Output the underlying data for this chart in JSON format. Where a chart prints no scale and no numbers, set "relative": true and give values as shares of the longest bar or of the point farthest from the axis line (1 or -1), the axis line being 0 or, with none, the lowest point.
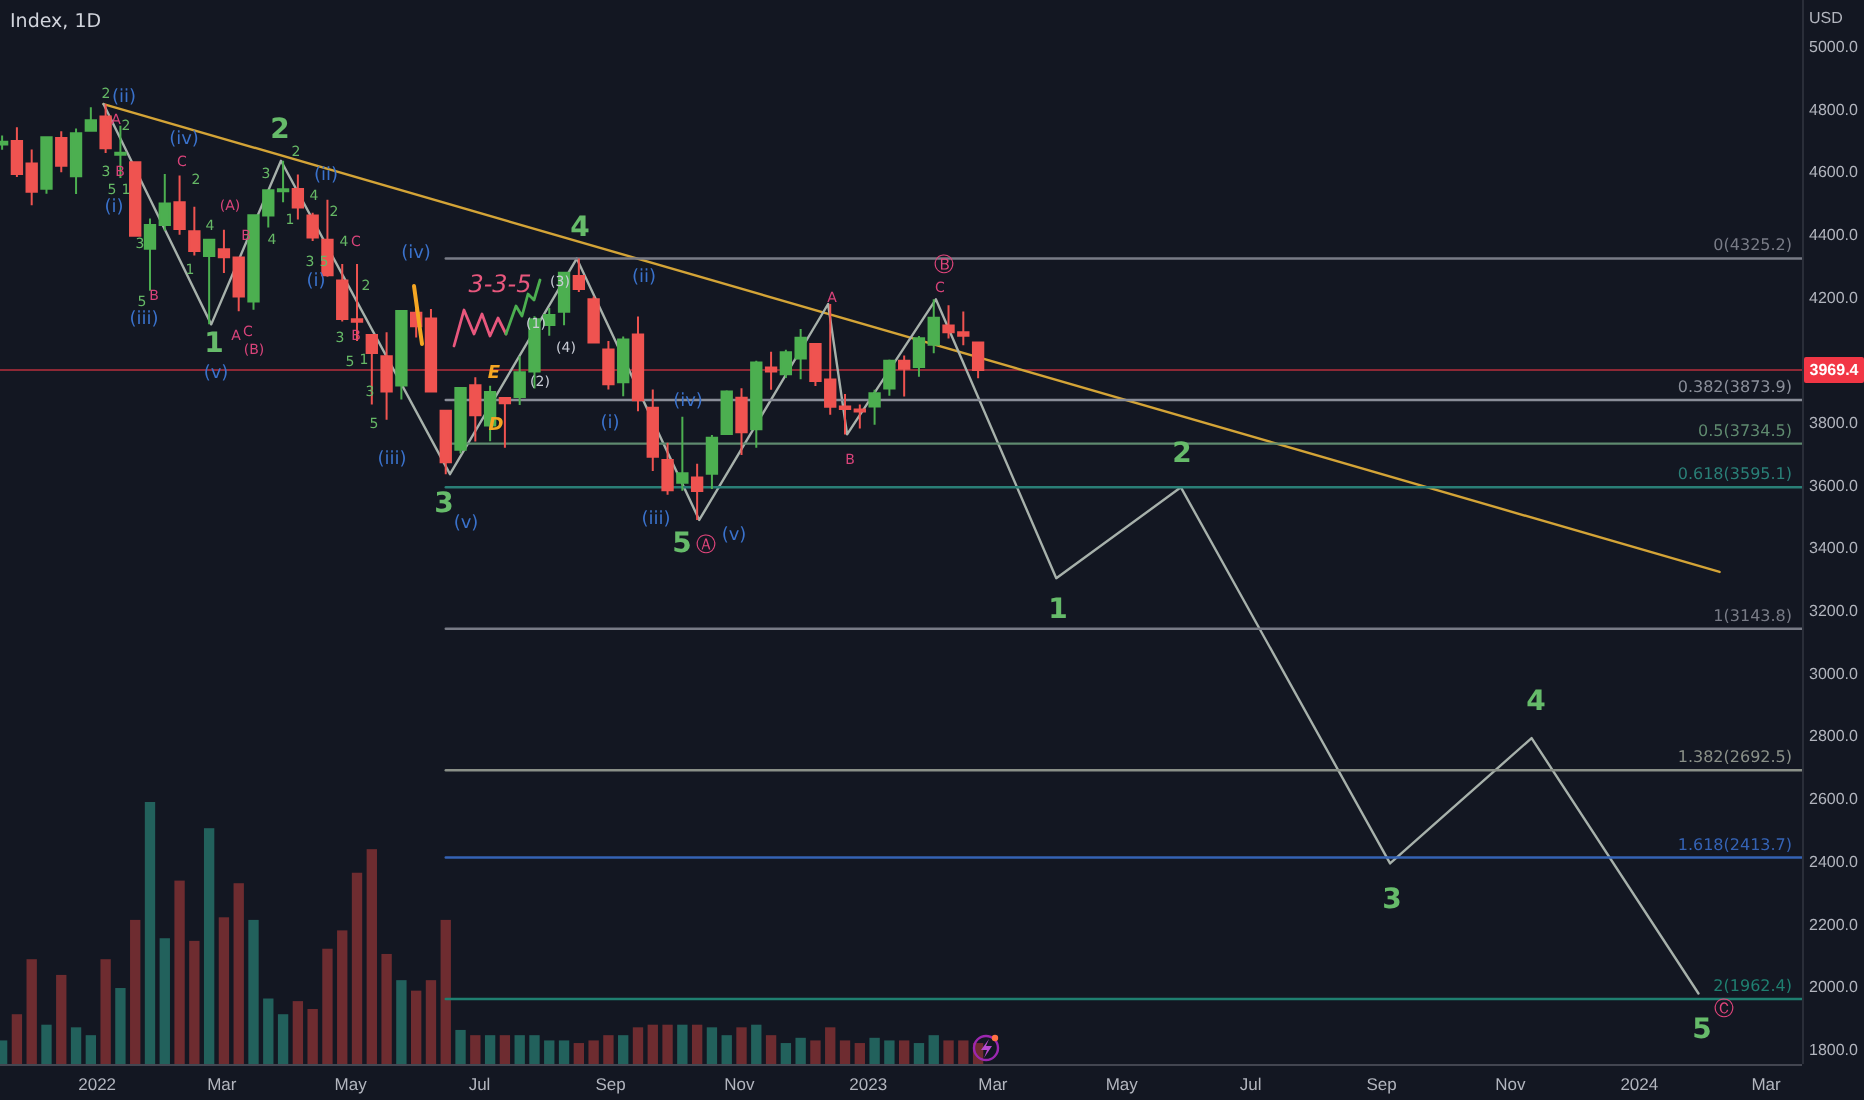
{
  "chart_data": [
    {
      "type": "candlestick",
      "title": "Index, 1D",
      "ylabel": "USD",
      "x": [
        "2021-11-17",
        "2021-11-24",
        "2021-12-01",
        "2021-12-08",
        "2021-12-15",
        "2021-12-22",
        "2021-12-29",
        "2022-01-05",
        "2022-01-12",
        "2022-01-19",
        "2022-01-26",
        "2022-02-02",
        "2022-02-09",
        "2022-02-16",
        "2022-02-23",
        "2022-03-02",
        "2022-03-09",
        "2022-03-16",
        "2022-03-23",
        "2022-03-30",
        "2022-04-06",
        "2022-04-13",
        "2022-04-20",
        "2022-04-27",
        "2022-05-04",
        "2022-05-11",
        "2022-05-18",
        "2022-05-25",
        "2022-06-01",
        "2022-06-08",
        "2022-06-15",
        "2022-06-22",
        "2022-06-29",
        "2022-07-06",
        "2022-07-13",
        "2022-07-20",
        "2022-07-27",
        "2022-08-03",
        "2022-08-10",
        "2022-08-17",
        "2022-08-24",
        "2022-08-31",
        "2022-09-07",
        "2022-09-14",
        "2022-09-21",
        "2022-09-28",
        "2022-10-05",
        "2022-10-12",
        "2022-10-19",
        "2022-10-26",
        "2022-11-02",
        "2022-11-09",
        "2022-11-16",
        "2022-11-23",
        "2022-11-30",
        "2022-12-07",
        "2022-12-14",
        "2022-12-21",
        "2022-12-28",
        "2023-01-04",
        "2023-01-11",
        "2023-01-18",
        "2023-01-25",
        "2023-02-01",
        "2023-02-08",
        "2023-02-15",
        "2023-02-22"
      ],
      "ohlc": [
        [
          4689,
          4718,
          4672,
          4698
        ],
        [
          4700,
          4744,
          4585,
          4595
        ],
        [
          4628,
          4673,
          4495,
          4538
        ],
        [
          4548,
          4713,
          4532,
          4712
        ],
        [
          4710,
          4731,
          4600,
          4621
        ],
        [
          4588,
          4740,
          4531,
          4725
        ],
        [
          4733,
          4808,
          4733,
          4766
        ],
        [
          4778,
          4818,
          4662,
          4677
        ],
        [
          4656,
          4749,
          4582,
          4663
        ],
        [
          4632,
          4632,
          4395,
          4398
        ],
        [
          4356,
          4453,
          4222,
          4432
        ],
        [
          4432,
          4595,
          4414,
          4501
        ],
        [
          4505,
          4590,
          4401,
          4419
        ],
        [
          4412,
          4490,
          4335,
          4349
        ],
        [
          4333,
          4385,
          4115,
          4385
        ],
        [
          4355,
          4417,
          4279,
          4329
        ],
        [
          4328,
          4328,
          4157,
          4204
        ],
        [
          4188,
          4465,
          4162,
          4463
        ],
        [
          4462,
          4546,
          4424,
          4543
        ],
        [
          4541,
          4637,
          4505,
          4546
        ],
        [
          4547,
          4593,
          4450,
          4488
        ],
        [
          4462,
          4471,
          4381,
          4392
        ],
        [
          4385,
          4513,
          4267,
          4272
        ],
        [
          4255,
          4308,
          4124,
          4132
        ],
        [
          4131,
          4308,
          4062,
          4123
        ],
        [
          4081,
          4081,
          3859,
          4024
        ],
        [
          4013,
          4090,
          3811,
          3901
        ],
        [
          3920,
          4160,
          3875,
          4158
        ],
        [
          4152,
          4165,
          4073,
          4109
        ],
        [
          4134,
          4164,
          3900,
          3901
        ],
        [
          3839,
          3839,
          3637,
          3675
        ],
        [
          3715,
          3913,
          3703,
          3912
        ],
        [
          3921,
          3946,
          3741,
          3825
        ],
        [
          3792,
          3919,
          3742,
          3899
        ],
        [
          3880,
          3880,
          3721,
          3863
        ],
        [
          3883,
          4013,
          3858,
          3962
        ],
        [
          3965,
          4141,
          3910,
          4131
        ],
        [
          4113,
          4167,
          4079,
          4145
        ],
        [
          4155,
          4280,
          4112,
          4280
        ],
        [
          4269,
          4325,
          4218,
          4228
        ],
        [
          4195,
          4204,
          4057,
          4057
        ],
        [
          4035,
          4062,
          3907,
          3924
        ],
        [
          3930,
          4076,
          3886,
          4067
        ],
        [
          4083,
          4140,
          3838,
          3873
        ],
        [
          3849,
          3907,
          3647,
          3693
        ],
        [
          3682,
          3737,
          3571,
          3586
        ],
        [
          3610,
          3820,
          3584,
          3640
        ],
        [
          3626,
          3670,
          3491,
          3583
        ],
        [
          3638,
          3762,
          3590,
          3753
        ],
        [
          3765,
          3905,
          3765,
          3901
        ],
        [
          3881,
          3911,
          3698,
          3771
        ],
        [
          3780,
          3999,
          3721,
          3993
        ],
        [
          3977,
          4028,
          3906,
          3965
        ],
        [
          3956,
          4034,
          3944,
          4026
        ],
        [
          4006,
          4100,
          3940,
          4072
        ],
        [
          4052,
          4052,
          3918,
          3934
        ],
        [
          3939,
          4180,
          3827,
          3852
        ],
        [
          3853,
          3893,
          3764,
          3845
        ],
        [
          3843,
          3859,
          3783,
          3840
        ],
        [
          3853,
          3906,
          3795,
          3895
        ],
        [
          3910,
          4003,
          3887,
          3999
        ],
        [
          3999,
          4016,
          3885,
          3973
        ],
        [
          3979,
          4078,
          3948,
          4071
        ],
        [
          4050,
          4195,
          4023,
          4136
        ],
        [
          4111,
          4176,
          4070,
          4090
        ],
        [
          4090,
          4156,
          4048,
          4079
        ],
        [
          4057,
          4057,
          3943,
          3969.4
        ]
      ],
      "colors": [
        "#4caf50",
        "#ef5350",
        "#ef5350",
        "#4caf50",
        "#ef5350",
        "#4caf50",
        "#4caf50",
        "#ef5350",
        "#4caf50",
        "#ef5350",
        "#4caf50",
        "#4caf50",
        "#ef5350",
        "#ef5350",
        "#4caf50",
        "#ef5350",
        "#ef5350",
        "#4caf50",
        "#4caf50",
        "#4caf50",
        "#ef5350",
        "#ef5350",
        "#ef5350",
        "#ef5350",
        "#ef5350",
        "#ef5350",
        "#ef5350",
        "#4caf50",
        "#ef5350",
        "#ef5350",
        "#ef5350",
        "#4caf50",
        "#ef5350",
        "#4caf50",
        "#ef5350",
        "#4caf50",
        "#4caf50",
        "#4caf50",
        "#4caf50",
        "#ef5350",
        "#ef5350",
        "#ef5350",
        "#4caf50",
        "#ef5350",
        "#ef5350",
        "#ef5350",
        "#4caf50",
        "#ef5350",
        "#4caf50",
        "#4caf50",
        "#ef5350",
        "#4caf50",
        "#ef5350",
        "#4caf50",
        "#4caf50",
        "#ef5350",
        "#ef5350",
        "#ef5350",
        "#ef5350",
        "#4caf50",
        "#4caf50",
        "#ef5350",
        "#4caf50",
        "#4caf50",
        "#ef5350",
        "#ef5350",
        "#ef5350"
      ],
      "xlim": [
        "2021-11-16",
        "2024-03-18"
      ],
      "ylim": [
        1755,
        5150
      ],
      "xticks": [
        {
          "value": "2022-01-01",
          "label": "2022"
        },
        {
          "value": "2022-03-01",
          "label": "Mar"
        },
        {
          "value": "2022-05-01",
          "label": "May"
        },
        {
          "value": "2022-07-01",
          "label": "Jul"
        },
        {
          "value": "2022-09-01",
          "label": "Sep"
        },
        {
          "value": "2022-11-01",
          "label": "Nov"
        },
        {
          "value": "2023-01-01",
          "label": "2023"
        },
        {
          "value": "2023-03-01",
          "label": "Mar"
        },
        {
          "value": "2023-05-01",
          "label": "May"
        },
        {
          "value": "2023-07-01",
          "label": "Jul"
        },
        {
          "value": "2023-09-01",
          "label": "Sep"
        },
        {
          "value": "2023-11-01",
          "label": "Nov"
        },
        {
          "value": "2024-01-01",
          "label": "2024"
        },
        {
          "value": "2024-03-01",
          "label": "Mar"
        }
      ],
      "yticks": [
        {
          "value": 1800,
          "label": "1800.0"
        },
        {
          "value": 2000,
          "label": "2000.0"
        },
        {
          "value": 2200,
          "label": "2200.0"
        },
        {
          "value": 2400,
          "label": "2400.0"
        },
        {
          "value": 2600,
          "label": "2600.0"
        },
        {
          "value": 2800,
          "label": "2800.0"
        },
        {
          "value": 3000,
          "label": "3000.0"
        },
        {
          "value": 3200,
          "label": "3200.0"
        },
        {
          "value": 3400,
          "label": "3400.0"
        },
        {
          "value": 3600,
          "label": "3600.0"
        },
        {
          "value": 3800,
          "label": "3800.0"
        },
        {
          "value": 4200,
          "label": "4200.0"
        },
        {
          "value": 4400,
          "label": "4400.0"
        },
        {
          "value": 4600,
          "label": "4600.0"
        },
        {
          "value": 4800,
          "label": "4800.0"
        },
        {
          "value": 5000,
          "label": "5000.0"
        }
      ],
      "series": [
        {
          "type": "line",
          "x": [
            "2022-01-04",
            "2024-02-08"
          ],
          "values": [
            4818,
            3325
          ],
          "color": "#d4a437"
        },
        {
          "type": "line",
          "x": [
            "2022-01-04",
            "2022-02-24",
            "2022-03-29",
            "2022-06-17",
            "2022-08-16",
            "2022-10-13",
            "2022-12-13",
            "2022-12-22",
            "2023-02-02",
            "2023-03-31",
            "2023-05-29",
            "2023-09-05",
            "2023-11-11",
            "2024-01-29"
          ],
          "values": [
            4818,
            4115,
            4637,
            3637,
            4325,
            3491,
            4180,
            3764,
            4195,
            3305,
            3595,
            2395,
            2795,
            1980
          ],
          "color": "#a7b1ab"
        },
        {
          "type": "line",
          "name": "0(4325.2)",
          "x": [
            "2022-06-15",
            "2024-03-18"
          ],
          "values": [
            4325.2,
            4325.2
          ],
          "color": "#787b86"
        },
        {
          "type": "line",
          "name": "0.382(3873.9)",
          "x": [
            "2022-06-15",
            "2024-03-18"
          ],
          "values": [
            3873.9,
            3873.9
          ],
          "color": "#8a8e99"
        },
        {
          "type": "line",
          "name": "0.5(3734.5)",
          "x": [
            "2022-06-15",
            "2024-03-18"
          ],
          "values": [
            3734.5,
            3734.5
          ],
          "color": "#5f8a6f"
        },
        {
          "type": "line",
          "name": "0.618(3595.1)",
          "x": [
            "2022-06-15",
            "2024-03-18"
          ],
          "values": [
            3595.1,
            3595.1
          ],
          "color": "#2a7f77"
        },
        {
          "type": "line",
          "name": "1(3143.8)",
          "x": [
            "2022-06-15",
            "2024-03-18"
          ],
          "values": [
            3143.8,
            3143.8
          ],
          "color": "#787b86"
        },
        {
          "type": "line",
          "name": "1.382(2692.5)",
          "x": [
            "2022-06-15",
            "2024-03-18"
          ],
          "values": [
            2692.5,
            2692.5
          ],
          "color": "#8a9088"
        },
        {
          "type": "line",
          "name": "1.618(2413.7)",
          "x": [
            "2022-06-15",
            "2024-03-18"
          ],
          "values": [
            2413.7,
            2413.7
          ],
          "color": "#3563b5"
        },
        {
          "type": "line",
          "name": "2(1962.4)",
          "x": [
            "2022-06-15",
            "2024-03-18"
          ],
          "values": [
            1962.4,
            1962.4
          ],
          "color": "#1f7f70"
        }
      ],
      "ref_lines": [
        {
          "axis": "y",
          "value": 3969.4,
          "label": "3969.4",
          "color": "#f23645"
        }
      ],
      "annotations": [
        "1",
        "2",
        "3",
        "4",
        "5",
        "1",
        "2",
        "3",
        "4",
        "5",
        "Ⓐ",
        "Ⓑ",
        "Ⓒ",
        "(ii)",
        "(i)",
        "(iv)",
        "(iii)",
        "(v)",
        "(ii)",
        "(i)",
        "(iv)",
        "(iii)",
        "(v)",
        "(i)",
        "(ii)",
        "(iv)",
        "(iii)",
        "(v)",
        "A",
        "B",
        "C",
        "(A)",
        "B",
        "B",
        "A",
        "C",
        "(B)",
        "C",
        "B",
        "A",
        "B",
        "C",
        "(1)",
        "(2)",
        "(3)",
        "(4)",
        "E",
        "D",
        "3-3-5",
        "2",
        "2",
        "3",
        "5",
        "1",
        "3",
        "5",
        "2",
        "4",
        "1",
        "3",
        "2",
        "4",
        "1",
        "4",
        "2",
        "3",
        "5",
        "4",
        "2",
        "3",
        "5",
        "1",
        "3",
        "5"
      ]
    },
    {
      "type": "bar",
      "relative": true,
      "tick_labels": false,
      "xlim": [
        "2021-11-16",
        "2024-03-18"
      ],
      "x": [
        "2021-11-17",
        "2021-11-24",
        "2021-12-01",
        "2021-12-08",
        "2021-12-15",
        "2021-12-22",
        "2021-12-29",
        "2022-01-05",
        "2022-01-12",
        "2022-01-19",
        "2022-01-26",
        "2022-02-02",
        "2022-02-09",
        "2022-02-16",
        "2022-02-23",
        "2022-03-02",
        "2022-03-09",
        "2022-03-16",
        "2022-03-23",
        "2022-03-30",
        "2022-04-06",
        "2022-04-13",
        "2022-04-20",
        "2022-04-27",
        "2022-05-04",
        "2022-05-11",
        "2022-05-18",
        "2022-05-25",
        "2022-06-01",
        "2022-06-08",
        "2022-06-15",
        "2022-06-22",
        "2022-06-29",
        "2022-07-06",
        "2022-07-13",
        "2022-07-20",
        "2022-07-27",
        "2022-08-03",
        "2022-08-10",
        "2022-08-17",
        "2022-08-24",
        "2022-08-31",
        "2022-09-07",
        "2022-09-14",
        "2022-09-21",
        "2022-09-28",
        "2022-10-05",
        "2022-10-12",
        "2022-10-19",
        "2022-10-26",
        "2022-11-02",
        "2022-11-09",
        "2022-11-16",
        "2022-11-23",
        "2022-11-30",
        "2022-12-07",
        "2022-12-14",
        "2022-12-21",
        "2022-12-28",
        "2023-01-04",
        "2023-01-11",
        "2023-01-18",
        "2023-01-25",
        "2023-02-01",
        "2023-02-08",
        "2023-02-15",
        "2023-02-22"
      ],
      "values": [
        0.09,
        0.19,
        0.4,
        0.15,
        0.34,
        0.14,
        0.11,
        0.4,
        0.29,
        0.55,
        1,
        0.48,
        0.7,
        0.47,
        0.9,
        0.56,
        0.69,
        0.55,
        0.25,
        0.19,
        0.24,
        0.21,
        0.44,
        0.51,
        0.73,
        0.82,
        0.42,
        0.32,
        0.28,
        0.32,
        0.55,
        0.13,
        0.11,
        0.11,
        0.11,
        0.11,
        0.11,
        0.09,
        0.09,
        0.08,
        0.09,
        0.11,
        0.11,
        0.14,
        0.15,
        0.15,
        0.15,
        0.15,
        0.14,
        0.11,
        0.14,
        0.15,
        0.11,
        0.08,
        0.1,
        0.09,
        0.14,
        0.09,
        0.08,
        0.1,
        0.09,
        0.09,
        0.08,
        0.11,
        0.09,
        0.09,
        0.08
      ],
      "colors": [
        "#22615c",
        "#6e2c30",
        "#6e2c30",
        "#22615c",
        "#6e2c30",
        "#22615c",
        "#22615c",
        "#6e2c30",
        "#22615c",
        "#6e2c30",
        "#22615c",
        "#22615c",
        "#6e2c30",
        "#6e2c30",
        "#22615c",
        "#6e2c30",
        "#6e2c30",
        "#22615c",
        "#22615c",
        "#22615c",
        "#6e2c30",
        "#6e2c30",
        "#6e2c30",
        "#6e2c30",
        "#6e2c30",
        "#6e2c30",
        "#6e2c30",
        "#22615c",
        "#6e2c30",
        "#6e2c30",
        "#6e2c30",
        "#22615c",
        "#6e2c30",
        "#22615c",
        "#6e2c30",
        "#22615c",
        "#22615c",
        "#22615c",
        "#22615c",
        "#6e2c30",
        "#6e2c30",
        "#6e2c30",
        "#22615c",
        "#6e2c30",
        "#6e2c30",
        "#6e2c30",
        "#22615c",
        "#6e2c30",
        "#22615c",
        "#22615c",
        "#6e2c30",
        "#22615c",
        "#6e2c30",
        "#22615c",
        "#22615c",
        "#6e2c30",
        "#6e2c30",
        "#6e2c30",
        "#6e2c30",
        "#22615c",
        "#22615c",
        "#6e2c30",
        "#22615c",
        "#22615c",
        "#6e2c30",
        "#6e2c30",
        "#6e2c30"
      ]
    }
  ]
}
